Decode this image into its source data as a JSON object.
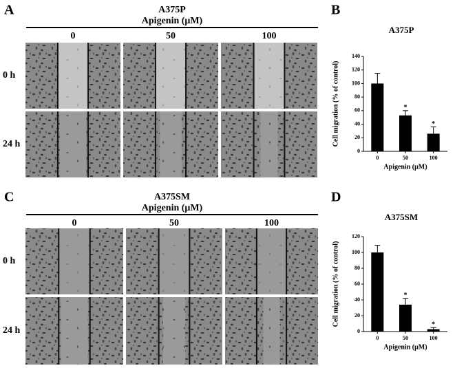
{
  "panels": [
    {
      "label": "A",
      "cell_line": "A375P",
      "treatment": "Apigenin (μM)",
      "columns": [
        "0",
        "50",
        "100"
      ],
      "rows": [
        "0 h",
        "24 h"
      ]
    },
    {
      "label": "C",
      "cell_line": "A375SM",
      "treatment": "Apigenin (μM)",
      "columns": [
        "0",
        "50",
        "100"
      ],
      "rows": [
        "0 h",
        "24 h"
      ]
    }
  ],
  "chart_data": [
    {
      "type": "bar",
      "panel_label": "B",
      "title": "A375P",
      "xlabel": "Apigenin (μM)",
      "ylabel": "Cell migration (% of control)",
      "categories": [
        "0",
        "50",
        "100"
      ],
      "values": [
        100,
        53,
        26
      ],
      "errors": [
        15,
        7,
        10
      ],
      "color": "#000000",
      "annotations": [
        {
          "category": "50",
          "text": "*"
        },
        {
          "category": "100",
          "text": "*"
        }
      ],
      "ylim": [
        0,
        140
      ],
      "yticks": [
        0,
        20,
        40,
        60,
        80,
        100,
        120,
        140
      ]
    },
    {
      "type": "bar",
      "panel_label": "D",
      "title": "A375SM",
      "xlabel": "Apigenin (μM)",
      "ylabel": "Cell migration (% of control)",
      "categories": [
        "0",
        "50",
        "100"
      ],
      "values": [
        100,
        34,
        3
      ],
      "errors": [
        9,
        8,
        2
      ],
      "color": "#000000",
      "annotations": [
        {
          "category": "50",
          "text": "*"
        },
        {
          "category": "100",
          "text": "*"
        }
      ],
      "ylim": [
        0,
        120
      ],
      "yticks": [
        0,
        20,
        40,
        60,
        80,
        100,
        120
      ]
    }
  ]
}
